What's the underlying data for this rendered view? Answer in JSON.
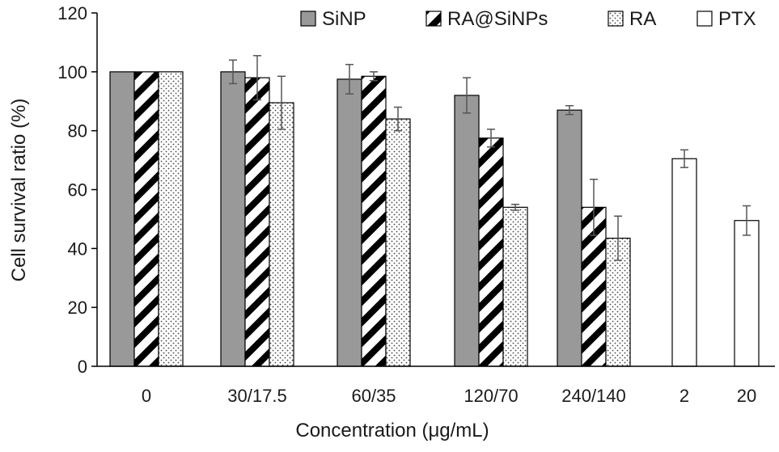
{
  "chart_data": {
    "type": "bar",
    "title": "",
    "xlabel": "Concentration (μg/mL)",
    "ylabel": "Cell survival ratio (%)",
    "ylim": [
      0,
      120
    ],
    "yticks": [
      0,
      20,
      40,
      60,
      80,
      100,
      120
    ],
    "grid": false,
    "legend_position": "top-right",
    "categories": [
      "0",
      "30/17.5",
      "60/35",
      "120/70",
      "240/140",
      "2",
      "20"
    ],
    "series": [
      {
        "name": "SiNP",
        "pattern": "solid-gray",
        "color": "#999999",
        "values": [
          100,
          100,
          97.5,
          92,
          87,
          null,
          null
        ],
        "errors": [
          0,
          4,
          5,
          6,
          1.5,
          null,
          null
        ]
      },
      {
        "name": "RA@SiNPs",
        "pattern": "diagonal-stripes",
        "color": "#000000",
        "values": [
          100,
          98,
          98.5,
          77.5,
          54,
          null,
          null
        ],
        "errors": [
          0,
          7.5,
          1.5,
          3,
          9.5,
          null,
          null
        ]
      },
      {
        "name": "RA",
        "pattern": "dots",
        "color": "#555555",
        "values": [
          100,
          89.5,
          84,
          54,
          43.5,
          null,
          null
        ],
        "errors": [
          0,
          9,
          4,
          1,
          7.5,
          null,
          null
        ]
      },
      {
        "name": "PTX",
        "pattern": "hollow",
        "color": "#ffffff",
        "values": [
          null,
          null,
          null,
          null,
          null,
          70.5,
          49.5
        ],
        "errors": [
          null,
          null,
          null,
          null,
          null,
          3,
          5
        ]
      }
    ]
  }
}
